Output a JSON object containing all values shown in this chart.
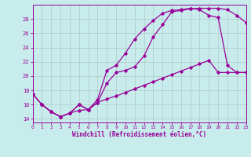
{
  "xlabel": "Windchill (Refroidissement éolien,°C)",
  "bg_color": "#c8ecec",
  "line_color": "#990099",
  "grid_color": "#b0c8c8",
  "xlim": [
    0,
    23
  ],
  "ylim": [
    13.5,
    30.0
  ],
  "yticks": [
    14,
    16,
    18,
    20,
    22,
    24,
    26,
    28
  ],
  "xticks": [
    0,
    1,
    2,
    3,
    4,
    5,
    6,
    7,
    8,
    9,
    10,
    11,
    12,
    13,
    14,
    15,
    16,
    17,
    18,
    19,
    20,
    21,
    22,
    23
  ],
  "curve1_x": [
    0,
    1,
    2,
    3,
    4,
    5,
    6,
    7,
    8,
    9,
    10,
    11,
    12,
    13,
    14,
    15,
    16,
    17,
    18,
    19,
    20,
    21,
    22,
    23
  ],
  "curve1_y": [
    17.5,
    16.0,
    15.0,
    14.3,
    14.8,
    16.0,
    15.3,
    16.7,
    20.8,
    21.5,
    23.2,
    25.2,
    26.6,
    27.8,
    28.8,
    29.2,
    29.3,
    29.5,
    29.3,
    28.5,
    28.2,
    21.5,
    20.5,
    20.5
  ],
  "curve2_x": [
    1,
    2,
    3,
    4,
    5,
    6,
    7,
    8,
    9,
    10,
    11,
    12,
    13,
    14,
    15,
    16,
    17,
    18,
    19,
    20,
    21,
    22,
    23
  ],
  "curve2_y": [
    16.0,
    15.0,
    14.3,
    14.8,
    16.0,
    15.3,
    16.3,
    19.0,
    20.5,
    20.8,
    21.3,
    22.8,
    25.5,
    27.2,
    29.0,
    29.2,
    29.4,
    29.5,
    29.5,
    29.5,
    29.3,
    28.5,
    27.5
  ],
  "curve3_x": [
    0,
    1,
    2,
    3,
    4,
    5,
    6,
    7,
    8,
    9,
    10,
    11,
    12,
    13,
    14,
    15,
    16,
    17,
    18,
    19,
    20,
    21,
    22,
    23
  ],
  "curve3_y": [
    17.5,
    16.0,
    15.0,
    14.3,
    14.8,
    15.2,
    15.3,
    16.3,
    16.8,
    17.2,
    17.7,
    18.2,
    18.7,
    19.2,
    19.7,
    20.2,
    20.7,
    21.2,
    21.7,
    22.2,
    20.5,
    20.5,
    20.5,
    20.5
  ]
}
